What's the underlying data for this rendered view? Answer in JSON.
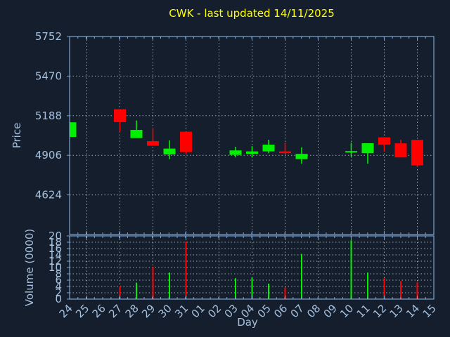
{
  "colors": {
    "background": "#141e2c",
    "axis_border": "#7fa3cf",
    "tick_label": "#a6c0dd",
    "gridline": "#b8bdc4",
    "title": "#ffff00",
    "up_candle": "#00f000",
    "down_candle": "#ff0000"
  },
  "chart_data": {
    "type": "candlestick",
    "title": "CWK - last updated 14/11/2025",
    "xlabel": "Day",
    "x_tick_labels": [
      "24",
      "25",
      "26",
      "27",
      "28",
      "29",
      "30",
      "31",
      "01",
      "02",
      "03",
      "04",
      "05",
      "06",
      "07",
      "08",
      "09",
      "10",
      "11",
      "12",
      "13",
      "14",
      "15"
    ],
    "grid": "dashed, vertical lines every 2nd day, horizontal at y ticks",
    "legend": "none",
    "price_panel": {
      "ylabel": "Price",
      "yticks": [
        5752,
        5470,
        5188,
        4906,
        4624
      ],
      "ylim": [
        4342,
        5752
      ]
    },
    "volume_panel": {
      "ylabel": "Volume (0000)",
      "yticks": [
        20,
        18,
        16,
        14,
        12,
        10,
        8,
        6,
        4,
        2,
        0
      ],
      "ylim": [
        0,
        20
      ]
    },
    "candles": [
      {
        "day": "24",
        "x_index": 0,
        "open": 5037,
        "high": 5141,
        "low": 5037,
        "close": 5141,
        "volume": null
      },
      {
        "day": "27",
        "x_index": 3,
        "open": 5234,
        "high": 5234,
        "low": 5074,
        "close": 5142,
        "volume": 4.0
      },
      {
        "day": "28",
        "x_index": 4,
        "open": 5029,
        "high": 5154,
        "low": 5029,
        "close": 5087,
        "volume": 5.2
      },
      {
        "day": "29",
        "x_index": 5,
        "open": 5007,
        "high": 5099,
        "low": 4974,
        "close": 4974,
        "volume": 10.2
      },
      {
        "day": "30",
        "x_index": 6,
        "open": 4912,
        "high": 5012,
        "low": 4879,
        "close": 4954,
        "volume": 8.4
      },
      {
        "day": "31",
        "x_index": 7,
        "open": 5074,
        "high": 5074,
        "low": 4912,
        "close": 4929,
        "volume": 18.2
      },
      {
        "day": "03",
        "x_index": 10,
        "open": 4909,
        "high": 4967,
        "low": 4891,
        "close": 4941,
        "volume": 6.6
      },
      {
        "day": "04",
        "x_index": 11,
        "open": 4916,
        "high": 4971,
        "low": 4891,
        "close": 4934,
        "volume": 6.8
      },
      {
        "day": "05",
        "x_index": 12,
        "open": 4934,
        "high": 5017,
        "low": 4921,
        "close": 4982,
        "volume": 4.9
      },
      {
        "day": "06",
        "x_index": 13,
        "open": 4934,
        "high": 4996,
        "low": 4921,
        "close": 4921,
        "volume": 3.6
      },
      {
        "day": "07",
        "x_index": 14,
        "open": 4879,
        "high": 4962,
        "low": 4846,
        "close": 4916,
        "volume": 14.3
      },
      {
        "day": "10",
        "x_index": 17,
        "open": 4927,
        "high": 4996,
        "low": 4896,
        "close": 4936,
        "volume": 18.6
      },
      {
        "day": "11",
        "x_index": 18,
        "open": 4921,
        "high": 4992,
        "low": 4846,
        "close": 4992,
        "volume": 8.4
      },
      {
        "day": "12",
        "x_index": 19,
        "open": 5034,
        "high": 5034,
        "low": 4937,
        "close": 4981,
        "volume": 6.6
      },
      {
        "day": "13",
        "x_index": 20,
        "open": 4991,
        "high": 5017,
        "low": 4891,
        "close": 4891,
        "volume": 5.7
      },
      {
        "day": "14",
        "x_index": 21,
        "open": 5016,
        "high": 5016,
        "low": 4821,
        "close": 4834,
        "volume": 5.3
      }
    ]
  }
}
